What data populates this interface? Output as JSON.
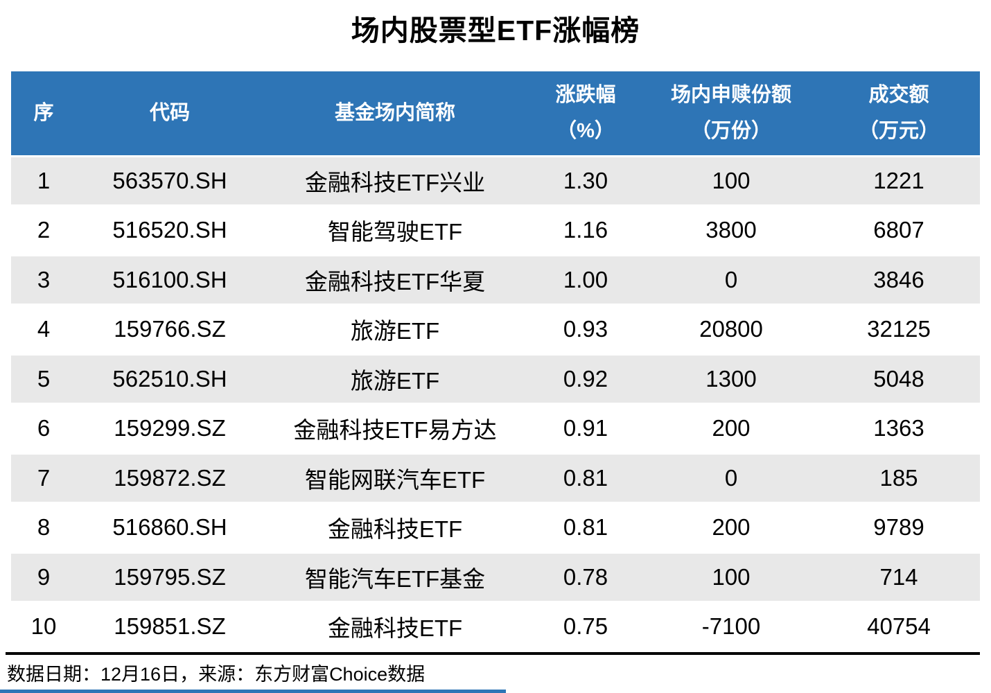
{
  "title": "场内股票型ETF涨幅榜",
  "colors": {
    "header_bg": "#2E75B6",
    "stripe_bg": "#E8E8E8",
    "accent_line": "#2E75B6"
  },
  "table": {
    "columns": [
      {
        "key": "rank",
        "label": "序",
        "unit": ""
      },
      {
        "key": "code",
        "label": "代码",
        "unit": ""
      },
      {
        "key": "name",
        "label": "基金场内简称",
        "unit": ""
      },
      {
        "key": "change",
        "label": "涨跌幅",
        "unit": "（%）"
      },
      {
        "key": "flow",
        "label": "场内申赎份额",
        "unit": "（万份）"
      },
      {
        "key": "turnover",
        "label": "成交额",
        "unit": "（万元）"
      }
    ],
    "rows": [
      [
        "1",
        "563570.SH",
        "金融科技ETF兴业",
        "1.30",
        "100",
        "1221"
      ],
      [
        "2",
        "516520.SH",
        "智能驾驶ETF",
        "1.16",
        "3800",
        "6807"
      ],
      [
        "3",
        "516100.SH",
        "金融科技ETF华夏",
        "1.00",
        "0",
        "3846"
      ],
      [
        "4",
        "159766.SZ",
        "旅游ETF",
        "0.93",
        "20800",
        "32125"
      ],
      [
        "5",
        "562510.SH",
        "旅游ETF",
        "0.92",
        "1300",
        "5048"
      ],
      [
        "6",
        "159299.SZ",
        "金融科技ETF易方达",
        "0.91",
        "200",
        "1363"
      ],
      [
        "7",
        "159872.SZ",
        "智能网联汽车ETF",
        "0.81",
        "0",
        "185"
      ],
      [
        "8",
        "516860.SH",
        "金融科技ETF",
        "0.81",
        "200",
        "9789"
      ],
      [
        "9",
        "159795.SZ",
        "智能汽车ETF基金",
        "0.78",
        "100",
        "714"
      ],
      [
        "10",
        "159851.SZ",
        "金融科技ETF",
        "0.75",
        "-7100",
        "40754"
      ]
    ]
  },
  "footer": {
    "note": "数据日期：12月16日，来源：东方财富Choice数据"
  },
  "chart_data": {
    "type": "table",
    "title": "场内股票型ETF涨幅榜",
    "columns": [
      "序",
      "代码",
      "基金场内简称",
      "涨跌幅（%）",
      "场内申赎份额（万份）",
      "成交额（万元）"
    ],
    "rows": [
      [
        1,
        "563570.SH",
        "金融科技ETF兴业",
        1.3,
        100,
        1221
      ],
      [
        2,
        "516520.SH",
        "智能驾驶ETF",
        1.16,
        3800,
        6807
      ],
      [
        3,
        "516100.SH",
        "金融科技ETF华夏",
        1.0,
        0,
        3846
      ],
      [
        4,
        "159766.SZ",
        "旅游ETF",
        0.93,
        20800,
        32125
      ],
      [
        5,
        "562510.SH",
        "旅游ETF",
        0.92,
        1300,
        5048
      ],
      [
        6,
        "159299.SZ",
        "金融科技ETF易方达",
        0.91,
        200,
        1363
      ],
      [
        7,
        "159872.SZ",
        "智能网联汽车ETF",
        0.81,
        0,
        185
      ],
      [
        8,
        "516860.SH",
        "金融科技ETF",
        0.81,
        200,
        9789
      ],
      [
        9,
        "159795.SZ",
        "智能汽车ETF基金",
        0.78,
        100,
        714
      ],
      [
        10,
        "159851.SZ",
        "金融科技ETF",
        0.75,
        -7100,
        40754
      ]
    ],
    "footnote": "数据日期：12月16日，来源：东方财富Choice数据"
  }
}
